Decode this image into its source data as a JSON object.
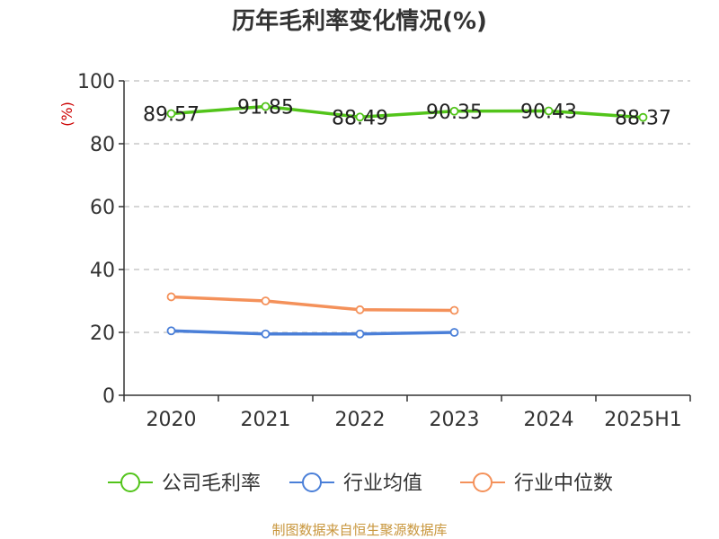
{
  "chart_data": {
    "type": "line",
    "title": "历年毛利率变化情况(%)",
    "ylabel": "(%)",
    "ylabel_color": "#cc0000",
    "categories": [
      "2020",
      "2021",
      "2022",
      "2023",
      "2024",
      "2025H1"
    ],
    "ylim": [
      0,
      100
    ],
    "yticks": [
      0,
      20,
      40,
      60,
      80,
      100
    ],
    "grid": true,
    "legend_position": "bottom",
    "series": [
      {
        "name": "公司毛利率",
        "color": "#52c41a",
        "values": [
          89.57,
          91.85,
          88.49,
          90.35,
          90.43,
          88.37
        ],
        "labels": [
          "89.57",
          "91.85",
          "88.49",
          "90.35",
          "90.43",
          "88.37"
        ]
      },
      {
        "name": "行业均值",
        "color": "#4a7fd8",
        "values": [
          20.5,
          19.5,
          19.5,
          20.0,
          null,
          null
        ]
      },
      {
        "name": "行业中位数",
        "color": "#f4915a",
        "values": [
          31.3,
          30.0,
          27.2,
          27.0,
          null,
          null
        ]
      }
    ],
    "source": "制图数据来自恒生聚源数据库",
    "source_color": "#c8963c"
  }
}
